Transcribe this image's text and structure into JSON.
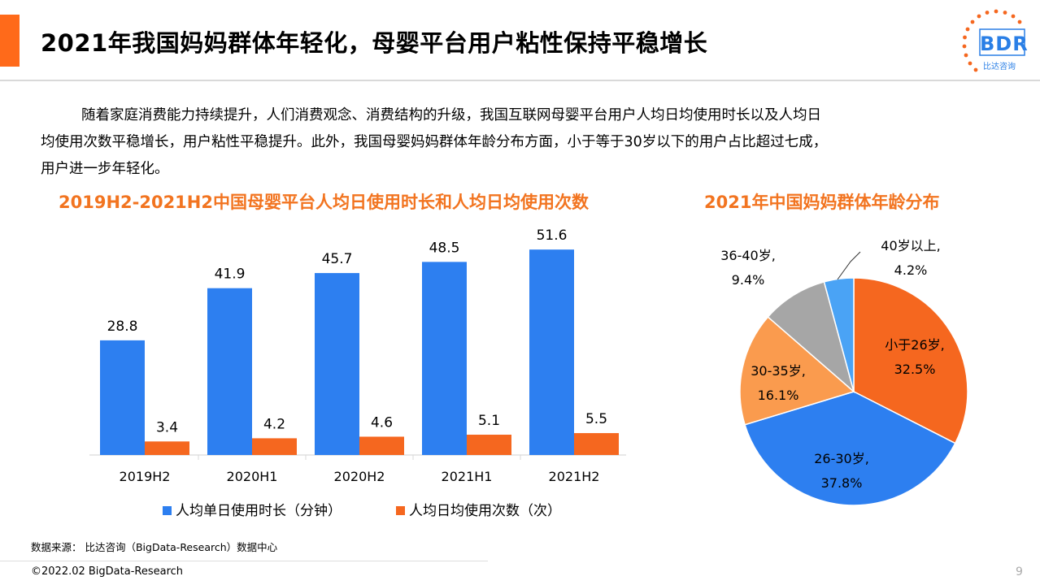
{
  "header": {
    "title": "2021年我国妈妈群体年轻化，母婴平台用户粘性保持平稳增长",
    "logo_text": "BDR",
    "logo_sub": "比达咨询"
  },
  "intro": {
    "line1": "随着家庭消费能力持续提升，人们消费观念、消费结构的升级，我国互联网母婴平台用户人均日均使用时长以及人均日",
    "line2": "均使用次数平稳增长，用户粘性平稳提升。此外，我国母婴妈妈群体年龄分布方面，小于等于30岁以下的用户占比超过七成，",
    "line3": "用户进一步年轻化。"
  },
  "bar_chart_title": "2019H2-2021H2中国母婴平台人均日使用时长和人均日均使用次数",
  "pie_chart_title": "2021年中国妈妈群体年龄分布",
  "chart_data": [
    {
      "type": "bar",
      "categories": [
        "2019H2",
        "2020H1",
        "2020H2",
        "2021H1",
        "2021H2"
      ],
      "series": [
        {
          "name": "人均单日使用时长（分钟）",
          "values": [
            28.8,
            41.9,
            45.7,
            48.5,
            51.6
          ],
          "labels": [
            "28.8",
            "41.9",
            "45.7",
            "48.5",
            "51.6"
          ],
          "color": "#2d7ff0"
        },
        {
          "name": "人均日均使用次数（次）",
          "values": [
            3.4,
            4.2,
            4.6,
            5.1,
            5.5
          ],
          "labels": [
            "3.4",
            "4.2",
            "4.6",
            "5.1",
            "5.5"
          ],
          "color": "#f5671f"
        }
      ],
      "ylim": [
        0,
        60
      ],
      "legend": "bottom"
    },
    {
      "type": "pie",
      "slices": [
        {
          "label": "小于26岁",
          "pct": "32.5%",
          "value": 32.5,
          "color": "#f5671f"
        },
        {
          "label": "26-30岁",
          "pct": "37.8%",
          "value": 37.8,
          "color": "#2d7ff0"
        },
        {
          "label": "30-35岁",
          "pct": "16.1%",
          "value": 16.1,
          "color": "#fa9b4e"
        },
        {
          "label": "36-40岁",
          "pct": "9.4%",
          "value": 9.4,
          "color": "#a6a6a6"
        },
        {
          "label": "40岁以上",
          "pct": "4.2%",
          "value": 4.2,
          "color": "#4aa3f5"
        }
      ]
    }
  ],
  "source": "数据来源： 比达咨询（BigData-Research）数据中心",
  "copyright": "©2022.02 BigData-Research",
  "page_number": "9"
}
